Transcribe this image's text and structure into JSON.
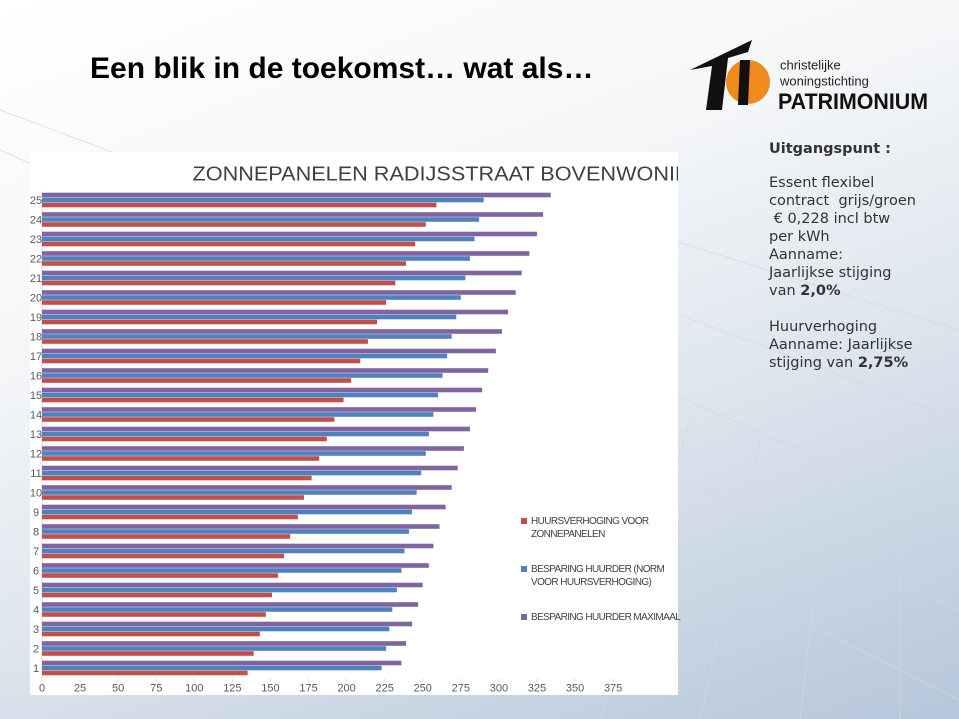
{
  "title": "Een blik in de toekomst… wat als…",
  "logo": {
    "line1": "christelijke",
    "line2": "woningstichting",
    "line3": "PATRIMONIUM"
  },
  "notes": {
    "heading": "Uitgangspunt :",
    "block1": [
      "Essent flexibel",
      "contract  grijs/groen",
      " € 0,228 incl btw",
      "per kWh",
      "Aanname:",
      "Jaarlijkse stijging"
    ],
    "block1_last": {
      "text": "van ",
      "bold": "2,0%"
    },
    "block2": [
      "Huurverhoging",
      "Aanname: Jaarlijkse"
    ],
    "block2_last": {
      "text": "stijging van ",
      "bold": "2,75%"
    }
  },
  "chart_data": {
    "type": "bar",
    "orientation": "horizontal",
    "title": "ZONNEPANELEN RADIJSSTRAAT BOVENWONING",
    "categories": [
      "1",
      "2",
      "3",
      "4",
      "5",
      "6",
      "7",
      "8",
      "9",
      "10",
      "11",
      "12",
      "13",
      "14",
      "15",
      "16",
      "17",
      "18",
      "19",
      "20",
      "21",
      "22",
      "23",
      "24",
      "25"
    ],
    "series": [
      {
        "name": "HUURSVERHOGING VOOR ZONNEPANELEN",
        "color": "#c0504d",
        "values": [
          135,
          139,
          143,
          147,
          151,
          155,
          159,
          163,
          168,
          172,
          177,
          182,
          187,
          192,
          198,
          203,
          209,
          214,
          220,
          226,
          232,
          239,
          245,
          252,
          259
        ]
      },
      {
        "name": "BESPARING HUURDER (NORM VOOR HUURSVERHOGING)",
        "color": "#4f81bd",
        "values": [
          223,
          226,
          228,
          230,
          233,
          236,
          238,
          241,
          243,
          246,
          249,
          252,
          254,
          257,
          260,
          263,
          266,
          269,
          272,
          275,
          278,
          281,
          284,
          287,
          290
        ]
      },
      {
        "name": "BESPARING HUURDER MAXIMAAL",
        "color": "#8064a2",
        "values": [
          236,
          239,
          243,
          247,
          250,
          254,
          257,
          261,
          265,
          269,
          273,
          277,
          281,
          285,
          289,
          293,
          298,
          302,
          306,
          311,
          315,
          320,
          325,
          329,
          334
        ]
      }
    ],
    "xlim": [
      0,
      400
    ],
    "xticks": [
      0,
      25,
      50,
      75,
      100,
      125,
      150,
      175,
      200,
      225,
      250,
      275,
      300,
      325,
      350,
      375
    ],
    "grid": false,
    "legend": "right"
  }
}
